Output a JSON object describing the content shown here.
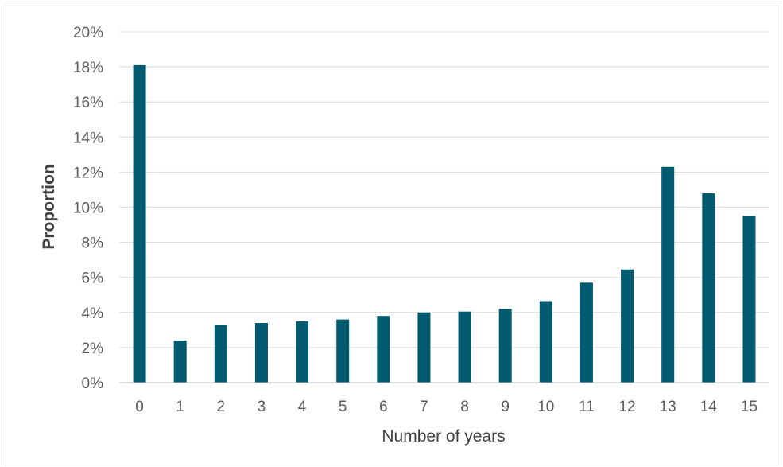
{
  "chart_data": {
    "type": "bar",
    "xlabel": "Number of years",
    "ylabel": "Proportion",
    "categories": [
      "0",
      "1",
      "2",
      "3",
      "4",
      "5",
      "6",
      "7",
      "8",
      "9",
      "10",
      "11",
      "12",
      "13",
      "14",
      "15"
    ],
    "values": [
      18.1,
      2.4,
      3.3,
      3.4,
      3.5,
      3.6,
      3.8,
      4.0,
      4.05,
      4.2,
      4.65,
      5.7,
      6.45,
      12.3,
      10.8,
      9.5
    ],
    "value_unit": "%",
    "ylim": [
      0,
      20
    ],
    "yticks": [
      0,
      2,
      4,
      6,
      8,
      10,
      12,
      14,
      16,
      18,
      20
    ],
    "ytick_labels": [
      "0%",
      "2%",
      "4%",
      "6%",
      "8%",
      "10%",
      "12%",
      "14%",
      "16%",
      "18%",
      "20%"
    ],
    "grid": "horizontal",
    "bar_color": "#005a70",
    "grid_color": "#d9d9d9",
    "axis_color": "#bfbfbf"
  }
}
